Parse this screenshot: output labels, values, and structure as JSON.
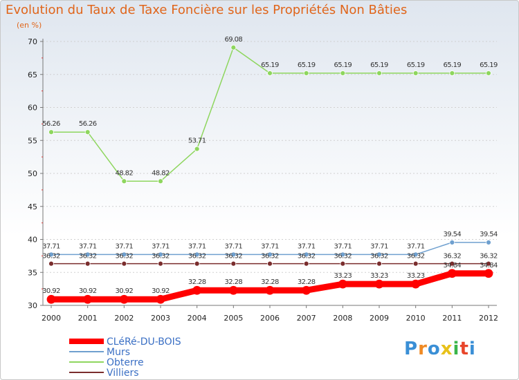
{
  "chart_data": {
    "type": "line",
    "title": "Evolution du Taux de Taxe Foncière sur les Propriétés Non Bâties",
    "unit_label": "(en %)",
    "x": [
      "2000",
      "2001",
      "2002",
      "2003",
      "2004",
      "2005",
      "2006",
      "2007",
      "2008",
      "2009",
      "2010",
      "2011",
      "2012"
    ],
    "ylim": [
      30,
      70
    ],
    "yticks": [
      30,
      35,
      40,
      45,
      50,
      55,
      60,
      65,
      70
    ],
    "series": [
      {
        "name": "CLéRé-DU-BOIS",
        "color": "#ff0000",
        "values": [
          30.92,
          30.92,
          30.92,
          30.92,
          32.28,
          32.28,
          32.28,
          32.28,
          33.23,
          33.23,
          33.23,
          34.84,
          34.84
        ],
        "labels": [
          "30.92",
          "30.92",
          "30.92",
          "30.92",
          "32.28",
          "32.28",
          "32.28",
          "32.28",
          "33.23",
          "33.23",
          "33.23",
          "34.84",
          "34.84"
        ]
      },
      {
        "name": "Murs",
        "color": "#6fa0cf",
        "values": [
          37.71,
          37.71,
          37.71,
          37.71,
          37.71,
          37.71,
          37.71,
          37.71,
          37.71,
          37.71,
          37.71,
          39.54,
          39.54
        ],
        "labels": [
          "37.71",
          "37.71",
          "37.71",
          "37.71",
          "37.71",
          "37.71",
          "37.71",
          "37.71",
          "37.71",
          "37.71",
          "37.71",
          "39.54",
          "39.54"
        ]
      },
      {
        "name": "Obterre",
        "color": "#8ed65e",
        "values": [
          56.26,
          56.26,
          48.82,
          48.82,
          53.71,
          69.08,
          65.19,
          65.19,
          65.19,
          65.19,
          65.19,
          65.19,
          65.19
        ],
        "labels": [
          "56.26",
          "56.26",
          "48.82",
          "48.82",
          "53.71",
          "69.08",
          "65.19",
          "65.19",
          "65.19",
          "65.19",
          "65.19",
          "65.19",
          "65.19"
        ]
      },
      {
        "name": "Villiers",
        "color": "#7a2d2d",
        "values": [
          36.32,
          36.32,
          36.32,
          36.32,
          36.32,
          36.32,
          36.32,
          36.32,
          36.32,
          36.32,
          36.32,
          36.32,
          36.32
        ],
        "labels": [
          "36.32",
          "36.32",
          "36.32",
          "36.32",
          "36.32",
          "36.32",
          "36.32",
          "36.32",
          "36.32",
          "36.32",
          "36.32",
          "36.32",
          "36.32"
        ]
      }
    ],
    "legend_position": "bottom-left"
  },
  "logo": {
    "text": "Proxiti",
    "colors": [
      "#3a8fd6",
      "#f08a24",
      "#3a8fd6",
      "#e8c11a",
      "#3ab54a",
      "#e8452a",
      "#3a8fd6"
    ]
  }
}
